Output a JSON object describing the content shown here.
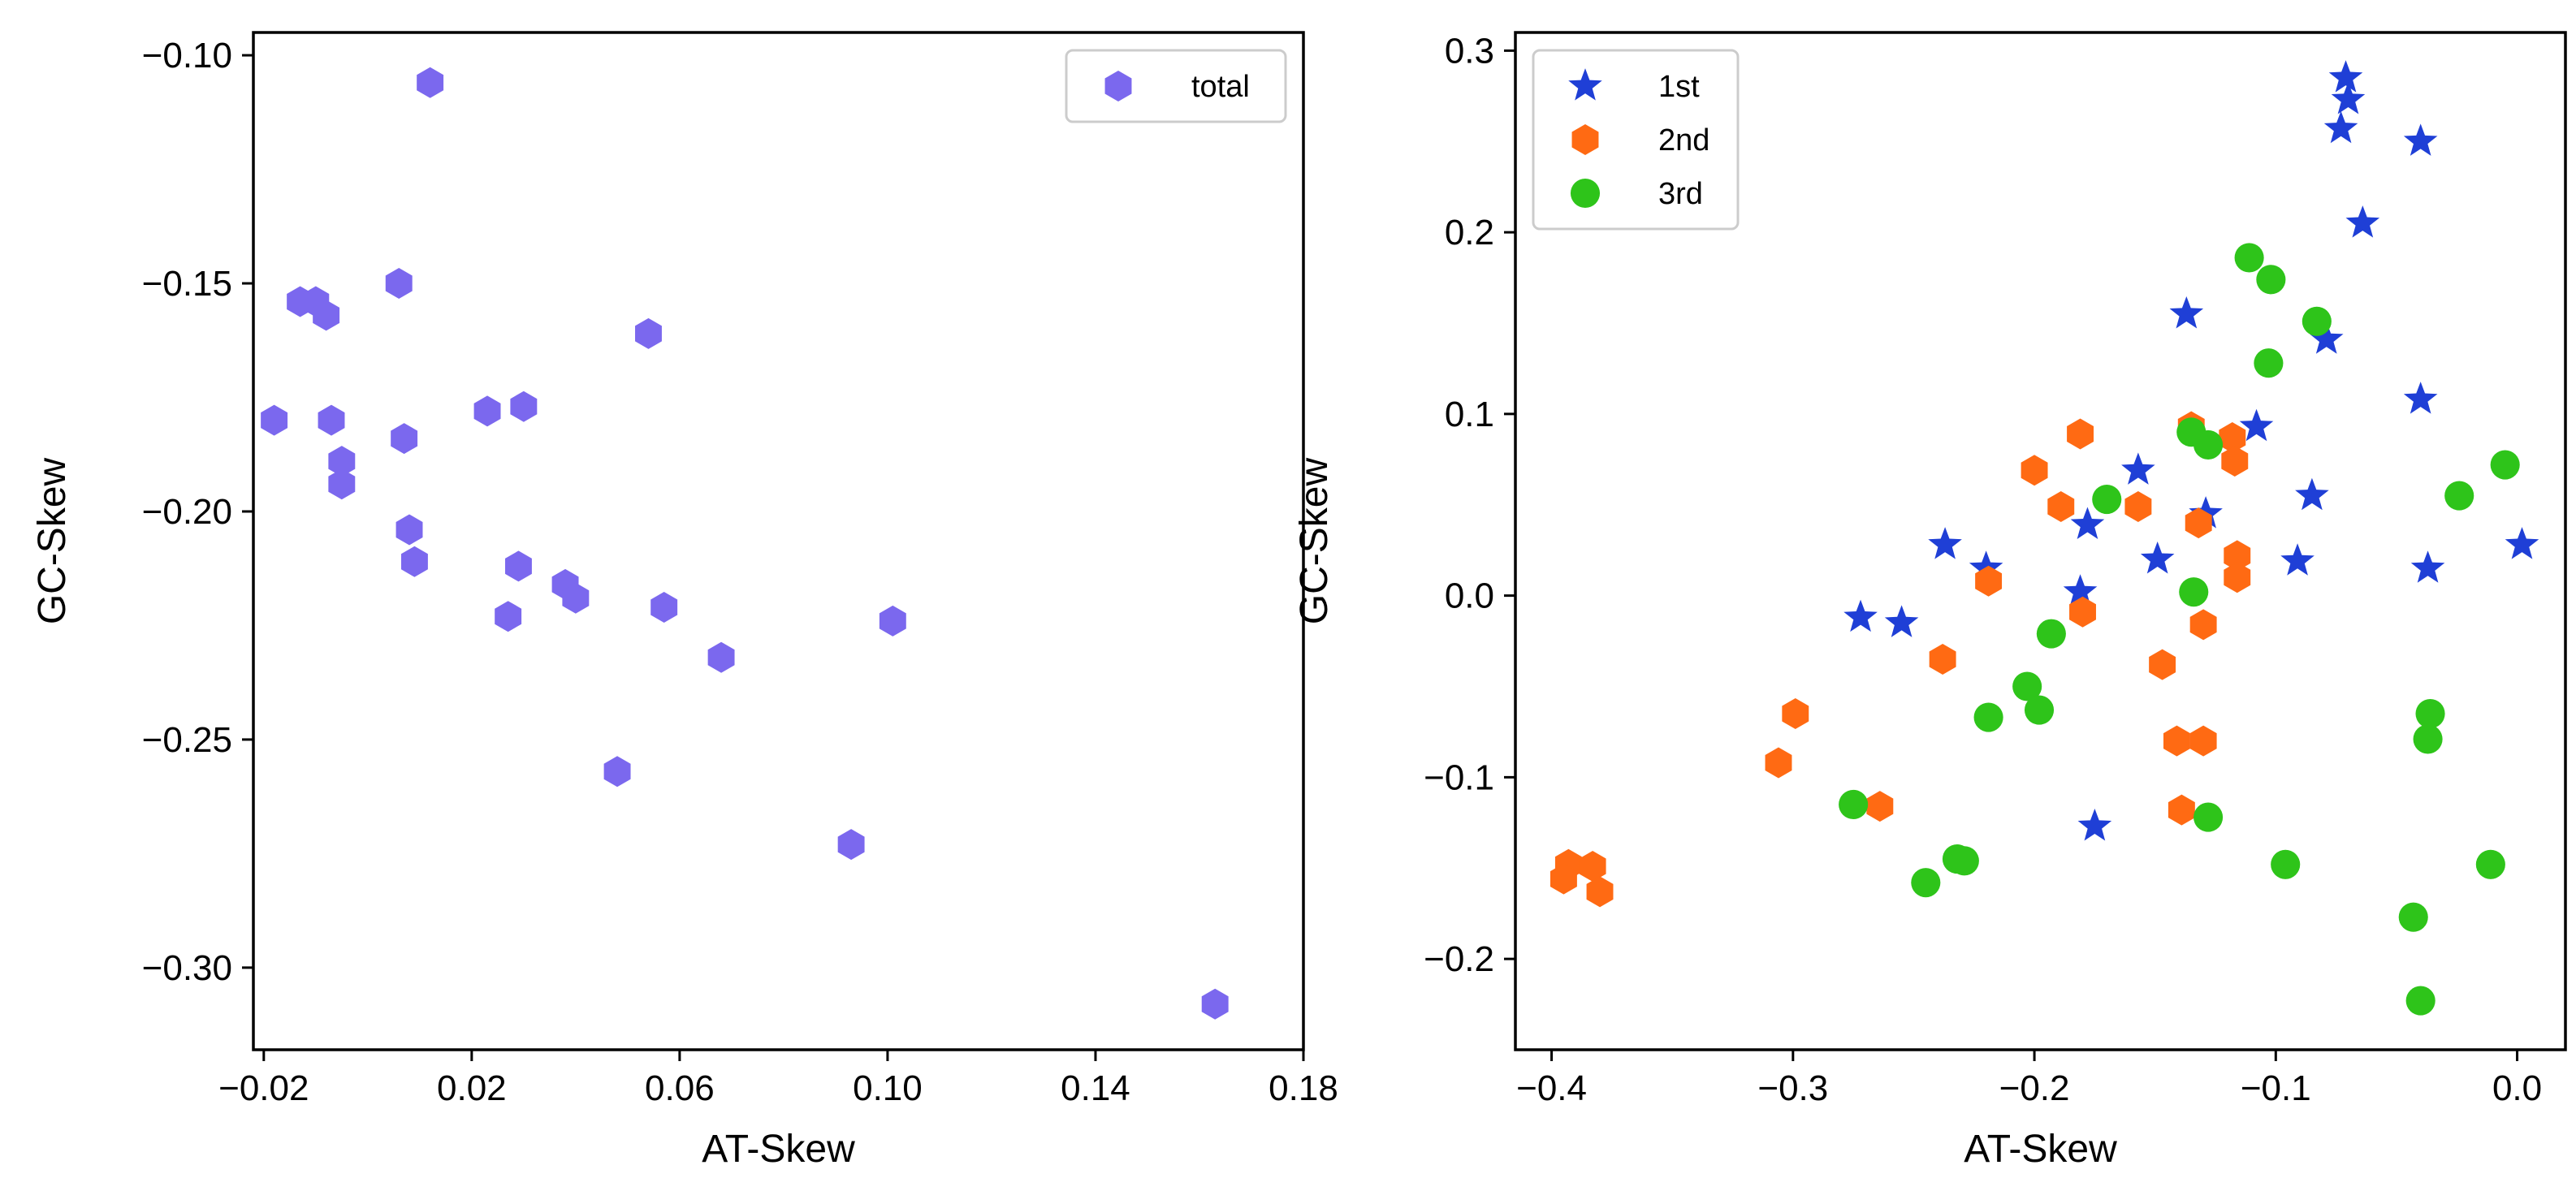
{
  "chart_data": [
    {
      "type": "scatter",
      "xlabel": "AT-Skew",
      "ylabel": "GC-Skew",
      "xlim": [
        -0.022,
        0.18
      ],
      "ylim": [
        -0.318,
        -0.095
      ],
      "xticks": [
        -0.02,
        0.02,
        0.06,
        0.1,
        0.14,
        0.18
      ],
      "xtick_labels": [
        "−0.02",
        "0.02",
        "0.06",
        "0.10",
        "0.14",
        "0.18"
      ],
      "yticks": [
        -0.3,
        -0.25,
        -0.2,
        -0.15,
        -0.1
      ],
      "ytick_labels": [
        "−0.30",
        "−0.25",
        "−0.20",
        "−0.15",
        "−0.10"
      ],
      "legend_position": "top-right",
      "series": [
        {
          "name": "total",
          "marker": "hexagon",
          "color": "#7b68ee",
          "points": [
            [
              0.012,
              -0.106
            ],
            [
              -0.013,
              -0.154
            ],
            [
              -0.01,
              -0.154
            ],
            [
              -0.008,
              -0.157
            ],
            [
              0.006,
              -0.15
            ],
            [
              -0.018,
              -0.18
            ],
            [
              -0.007,
              -0.18
            ],
            [
              -0.005,
              -0.189
            ],
            [
              -0.005,
              -0.194
            ],
            [
              0.007,
              -0.184
            ],
            [
              0.008,
              -0.204
            ],
            [
              0.009,
              -0.211
            ],
            [
              0.023,
              -0.178
            ],
            [
              0.03,
              -0.177
            ],
            [
              0.029,
              -0.212
            ],
            [
              0.027,
              -0.223
            ],
            [
              0.038,
              -0.216
            ],
            [
              0.04,
              -0.219
            ],
            [
              0.054,
              -0.161
            ],
            [
              0.057,
              -0.221
            ],
            [
              0.068,
              -0.232
            ],
            [
              0.048,
              -0.257
            ],
            [
              0.093,
              -0.273
            ],
            [
              0.101,
              -0.224
            ],
            [
              0.163,
              -0.308
            ]
          ]
        }
      ]
    },
    {
      "type": "scatter",
      "xlabel": "AT-Skew",
      "ylabel": "GC-Skew",
      "xlim": [
        -0.415,
        0.02
      ],
      "ylim": [
        -0.25,
        0.31
      ],
      "xticks": [
        -0.4,
        -0.3,
        -0.2,
        -0.1,
        0.0
      ],
      "xtick_labels": [
        "−0.4",
        "−0.3",
        "−0.2",
        "−0.1",
        "0.0"
      ],
      "yticks": [
        -0.2,
        -0.1,
        0.0,
        0.1,
        0.2,
        0.3
      ],
      "ytick_labels": [
        "−0.2",
        "−0.1",
        "0.0",
        "0.1",
        "0.2",
        "0.3"
      ],
      "legend_position": "top-left",
      "series": [
        {
          "name": "1st",
          "marker": "star",
          "color": "#1f3fd6",
          "points": [
            [
              -0.071,
              0.285
            ],
            [
              -0.07,
              0.273
            ],
            [
              -0.073,
              0.257
            ],
            [
              -0.04,
              0.25
            ],
            [
              -0.064,
              0.205
            ],
            [
              -0.137,
              0.155
            ],
            [
              -0.079,
              0.141
            ],
            [
              -0.04,
              0.108
            ],
            [
              -0.108,
              0.093
            ],
            [
              -0.157,
              0.069
            ],
            [
              -0.085,
              0.055
            ],
            [
              -0.129,
              0.045
            ],
            [
              -0.178,
              0.039
            ],
            [
              -0.237,
              0.028
            ],
            [
              0.002,
              0.028
            ],
            [
              -0.149,
              0.02
            ],
            [
              -0.091,
              0.019
            ],
            [
              -0.22,
              0.015
            ],
            [
              -0.037,
              0.015
            ],
            [
              -0.181,
              0.002
            ],
            [
              -0.272,
              -0.012
            ],
            [
              -0.255,
              -0.015
            ],
            [
              -0.175,
              -0.127
            ]
          ]
        },
        {
          "name": "2nd",
          "marker": "hexagon",
          "color": "#ff6a13",
          "points": [
            [
              -0.135,
              0.093
            ],
            [
              -0.118,
              0.087
            ],
            [
              -0.181,
              0.089
            ],
            [
              -0.117,
              0.074
            ],
            [
              -0.2,
              0.069
            ],
            [
              -0.189,
              0.049
            ],
            [
              -0.157,
              0.049
            ],
            [
              -0.132,
              0.04
            ],
            [
              -0.116,
              0.022
            ],
            [
              -0.116,
              0.01
            ],
            [
              -0.219,
              0.008
            ],
            [
              -0.18,
              -0.009
            ],
            [
              -0.13,
              -0.016
            ],
            [
              -0.238,
              -0.035
            ],
            [
              -0.147,
              -0.038
            ],
            [
              -0.299,
              -0.065
            ],
            [
              -0.141,
              -0.08
            ],
            [
              -0.13,
              -0.08
            ],
            [
              -0.306,
              -0.092
            ],
            [
              -0.264,
              -0.116
            ],
            [
              -0.139,
              -0.118
            ],
            [
              -0.393,
              -0.148
            ],
            [
              -0.383,
              -0.149
            ],
            [
              -0.395,
              -0.156
            ],
            [
              -0.38,
              -0.163
            ]
          ]
        },
        {
          "name": "3rd",
          "marker": "circle",
          "color": "#2ec41a",
          "points": [
            [
              -0.111,
              0.186
            ],
            [
              -0.102,
              0.174
            ],
            [
              -0.083,
              0.151
            ],
            [
              -0.103,
              0.128
            ],
            [
              -0.135,
              0.09
            ],
            [
              -0.128,
              0.083
            ],
            [
              -0.005,
              0.072
            ],
            [
              -0.024,
              0.055
            ],
            [
              -0.17,
              0.053
            ],
            [
              -0.134,
              0.002
            ],
            [
              -0.193,
              -0.021
            ],
            [
              -0.203,
              -0.05
            ],
            [
              -0.198,
              -0.063
            ],
            [
              -0.219,
              -0.067
            ],
            [
              -0.036,
              -0.065
            ],
            [
              -0.037,
              -0.079
            ],
            [
              -0.275,
              -0.115
            ],
            [
              -0.128,
              -0.122
            ],
            [
              -0.232,
              -0.145
            ],
            [
              -0.229,
              -0.146
            ],
            [
              -0.096,
              -0.148
            ],
            [
              -0.011,
              -0.148
            ],
            [
              -0.245,
              -0.158
            ],
            [
              -0.043,
              -0.177
            ],
            [
              -0.04,
              -0.223
            ]
          ]
        }
      ]
    }
  ]
}
